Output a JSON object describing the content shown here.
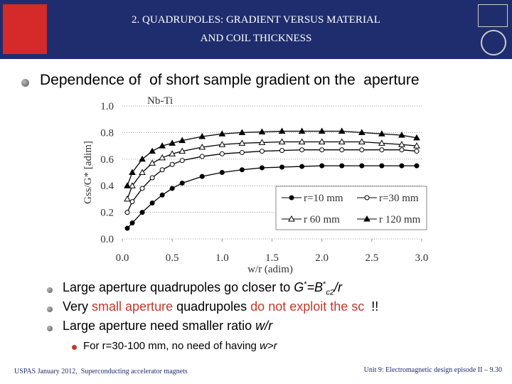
{
  "header": {
    "title_lines": [
      "2. QUADRUPOLES: GRADIENT VERSUS MATERIAL",
      "AND COIL THICKNESS"
    ]
  },
  "bullet": "Dependence of  of short sample gradient on the  aperture",
  "chart_data": {
    "type": "line",
    "title": "Nb-Ti",
    "xlabel": "w/r (adim)",
    "ylabel": "Gss/G* [adim]",
    "x": [
      0.05,
      0.1,
      0.2,
      0.3,
      0.4,
      0.5,
      0.6,
      0.8,
      1.0,
      1.2,
      1.4,
      1.6,
      1.8,
      2.0,
      2.2,
      2.4,
      2.6,
      2.8,
      2.95
    ],
    "series": [
      {
        "name": "r=10 mm",
        "color": "#000000",
        "marker": "filled-circle",
        "values": [
          0.08,
          0.12,
          0.2,
          0.27,
          0.33,
          0.38,
          0.42,
          0.47,
          0.5,
          0.52,
          0.535,
          0.54,
          0.545,
          0.55,
          0.55,
          0.55,
          0.55,
          0.55,
          0.55
        ]
      },
      {
        "name": "r=30 mm",
        "color": "#000000",
        "marker": "open-circle",
        "values": [
          0.2,
          0.28,
          0.38,
          0.46,
          0.52,
          0.56,
          0.59,
          0.62,
          0.64,
          0.65,
          0.66,
          0.665,
          0.67,
          0.67,
          0.67,
          0.67,
          0.67,
          0.67,
          0.66
        ]
      },
      {
        "name": "r 60 mm",
        "color": "#000000",
        "marker": "open-triangle",
        "values": [
          0.3,
          0.4,
          0.5,
          0.57,
          0.61,
          0.64,
          0.66,
          0.69,
          0.71,
          0.72,
          0.725,
          0.73,
          0.73,
          0.73,
          0.73,
          0.73,
          0.72,
          0.71,
          0.7
        ]
      },
      {
        "name": "r 120 mm",
        "color": "#000000",
        "marker": "filled-triangle",
        "values": [
          0.4,
          0.5,
          0.6,
          0.66,
          0.7,
          0.72,
          0.74,
          0.77,
          0.79,
          0.8,
          0.805,
          0.81,
          0.81,
          0.81,
          0.81,
          0.8,
          0.79,
          0.78,
          0.76
        ]
      }
    ],
    "xlim": [
      0,
      3
    ],
    "xticks": [
      {
        "value": 0,
        "label": "0.0"
      },
      {
        "value": 0.5,
        "label": "0.5"
      },
      {
        "value": 1,
        "label": "1.0"
      },
      {
        "value": 1.5,
        "label": "1.5"
      },
      {
        "value": 2,
        "label": "2.0"
      },
      {
        "value": 2.5,
        "label": "2.5"
      },
      {
        "value": 3,
        "label": "3.0"
      }
    ],
    "ylim": [
      0,
      1
    ],
    "yticks": [
      {
        "value": 0,
        "label": "0.0"
      },
      {
        "value": 0.2,
        "label": "0.2"
      },
      {
        "value": 0.4,
        "label": "0.4"
      },
      {
        "value": 0.6,
        "label": "0.6"
      },
      {
        "value": 0.8,
        "label": "0.8"
      },
      {
        "value": 1,
        "label": "1.0"
      }
    ],
    "grid": true,
    "legend": "lower right"
  },
  "sub_bullets": [
    [
      "Large aperture quadrupoles go closer to ",
      "G",
      "*",
      "=B",
      "*",
      "c2",
      "/r"
    ],
    [
      "Very ",
      "small aperture",
      " quadrupoles ",
      "do not exploit the sc",
      "  !!"
    ],
    [
      "Large aperture need smaller ratio ",
      "w/r"
    ]
  ],
  "sub_sub_bullet": [
    "For r=30-100 mm, no need of having ",
    "w>r"
  ],
  "footer": {
    "left": "USPAS January 2012,  Superconducting accelerator magnets",
    "right": "Unit 9: Electromagnetic design episode II – 9.30"
  }
}
